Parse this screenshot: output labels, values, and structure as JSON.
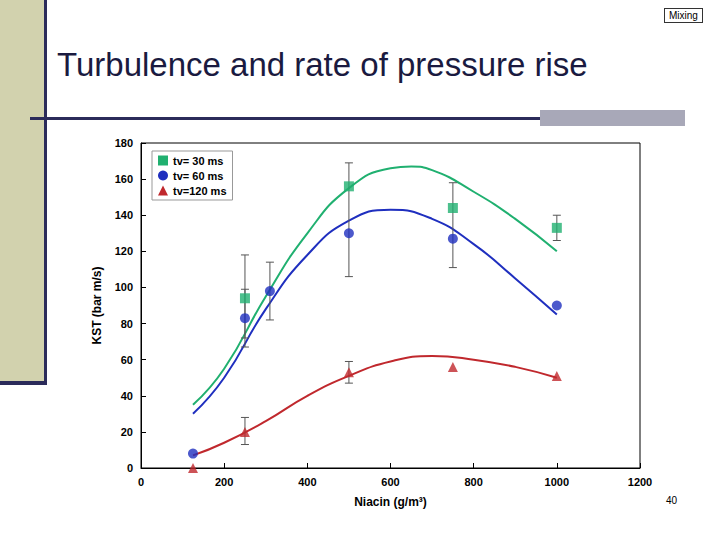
{
  "chart_data": {
    "type": "scatter",
    "title": "Turbulence and rate of pressure rise",
    "annotations": [
      "Mixing",
      "40"
    ],
    "x_label": "Niacin (g/m³)",
    "y_label": "KST (bar m/s)",
    "xlim": [
      0,
      1200
    ],
    "xticks": [
      0,
      200,
      400,
      600,
      800,
      1000,
      1200
    ],
    "ylim": [
      0,
      180
    ],
    "yticks": [
      0,
      20,
      40,
      60,
      80,
      100,
      120,
      140,
      160,
      180
    ],
    "grid": false,
    "legend": "upper left",
    "series": [
      {
        "name": "tv= 30 ms",
        "color": "#20b070",
        "marker": "square",
        "x": [
          250,
          500,
          750,
          1000
        ],
        "values": [
          94,
          156,
          144,
          133
        ],
        "errors": [
          [
            72,
            118
          ],
          [
            106,
            169
          ],
          [
            111,
            158
          ],
          [
            126,
            140
          ]
        ],
        "fit_x": [
          125,
          200,
          300,
          400,
          500,
          600,
          650,
          700,
          800,
          900,
          1000
        ],
        "fit_values": [
          35,
          55,
          95,
          130,
          155,
          166,
          167,
          165,
          153,
          138,
          120
        ]
      },
      {
        "name": "tv= 60 ms",
        "color": "#1f2fbf",
        "marker": "circle",
        "x": [
          125,
          250,
          310,
          500,
          750,
          1000
        ],
        "values": [
          8,
          83,
          98,
          130,
          127,
          90
        ],
        "errors": [
          null,
          [
            67,
            99
          ],
          [
            82,
            114
          ],
          null,
          null,
          null
        ],
        "fit_x": [
          125,
          200,
          300,
          400,
          500,
          600,
          700,
          800,
          900,
          1000
        ],
        "fit_values": [
          30,
          50,
          88,
          118,
          137,
          143,
          138,
          124,
          105,
          85
        ]
      },
      {
        "name": "tv=120 ms",
        "color": "#c0282d",
        "marker": "triangle",
        "x": [
          125,
          250,
          500,
          750,
          1000
        ],
        "values": [
          0,
          20,
          53,
          56,
          51
        ],
        "errors": [
          null,
          [
            13,
            28
          ],
          [
            47,
            59
          ],
          null,
          null
        ],
        "fit_x": [
          125,
          200,
          300,
          400,
          500,
          600,
          700,
          800,
          900,
          1000
        ],
        "fit_values": [
          7,
          14,
          26,
          40,
          51,
          59,
          62,
          60,
          56,
          50
        ]
      }
    ]
  }
}
